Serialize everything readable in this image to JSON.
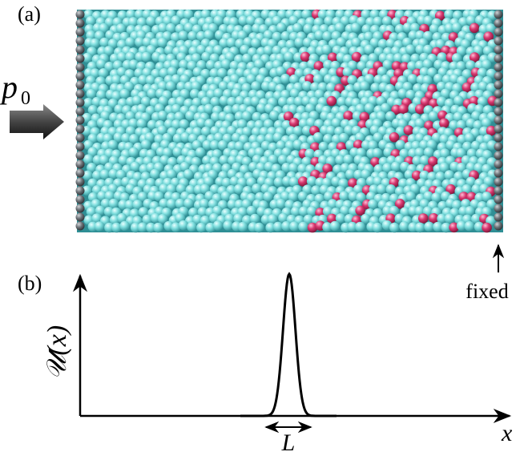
{
  "panel_a": {
    "label": "(a)",
    "pressure_symbol": "p",
    "pressure_subscript": "0",
    "boundary_label": "fixed"
  },
  "panel_b": {
    "label": "(b)",
    "y_axis_label": "𝒰(x)",
    "x_axis_label": "x",
    "width_label": "L"
  }
}
